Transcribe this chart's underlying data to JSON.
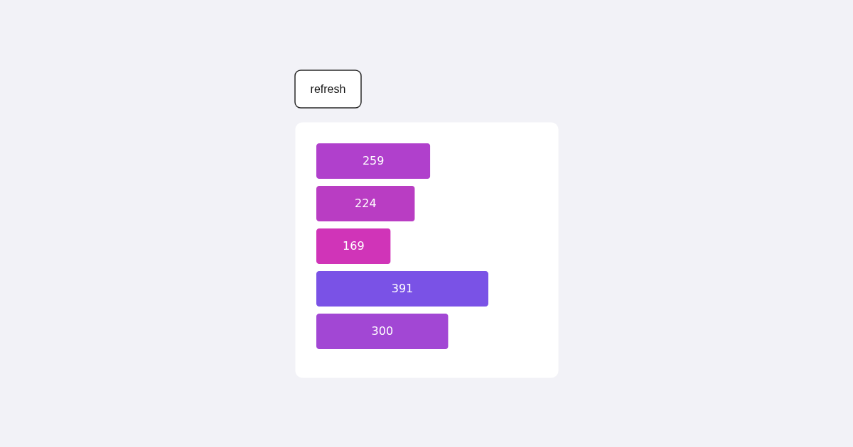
{
  "chart_data": {
    "type": "bar",
    "orientation": "horizontal",
    "categories": [
      null,
      null,
      null,
      null,
      null
    ],
    "values": [
      259,
      224,
      169,
      391,
      300
    ],
    "colors": [
      "#b040cc",
      "#b93dc3",
      "#d034b8",
      "#7a52e6",
      "#a247d4"
    ],
    "data_labels": true,
    "annotations": [
      "refresh"
    ]
  }
}
